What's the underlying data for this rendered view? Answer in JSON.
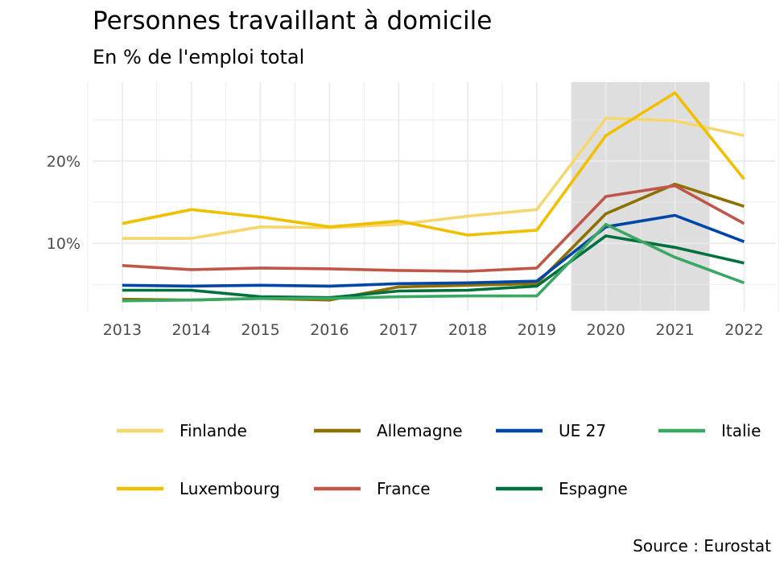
{
  "title": "Personnes travaillant à domicile",
  "subtitle": "En % de l'emploi total",
  "source": "Source : Eurostat",
  "chart_data": {
    "type": "line",
    "title": "Personnes travaillant à domicile",
    "subtitle": "En % de l'emploi total",
    "xlabel": "",
    "ylabel": "",
    "x": [
      2013,
      2014,
      2015,
      2016,
      2017,
      2018,
      2019,
      2020,
      2021,
      2022
    ],
    "x_tick_labels": [
      "2013",
      "2014",
      "2015",
      "2016",
      "2017",
      "2018",
      "2019",
      "2020",
      "2021",
      "2022"
    ],
    "y_ticks": [
      10,
      20
    ],
    "y_tick_labels": [
      "10%",
      "20%"
    ],
    "ylim": [
      1.8,
      29.6
    ],
    "grid": true,
    "highlight_x_range": [
      2019.5,
      2021.5
    ],
    "highlight_color": "#dedede",
    "legend_position": "bottom",
    "series": [
      {
        "name": "Finlande",
        "color": "#f5d76e",
        "values": [
          10.6,
          10.6,
          12.0,
          11.9,
          12.3,
          13.3,
          14.1,
          25.2,
          24.9,
          23.1
        ]
      },
      {
        "name": "Luxembourg",
        "color": "#f0c000",
        "values": [
          12.4,
          14.1,
          13.2,
          12.0,
          12.7,
          11.0,
          11.6,
          23.1,
          28.3,
          17.8
        ]
      },
      {
        "name": "Allemagne",
        "color": "#8c7000",
        "values": [
          3.2,
          3.1,
          3.3,
          3.1,
          4.7,
          4.9,
          5.1,
          13.6,
          17.2,
          14.5
        ]
      },
      {
        "name": "France",
        "color": "#c0564a",
        "values": [
          7.3,
          6.8,
          7.0,
          6.9,
          6.7,
          6.6,
          7.0,
          15.7,
          17.0,
          12.4
        ]
      },
      {
        "name": "UE 27",
        "color": "#0046a8",
        "values": [
          4.9,
          4.8,
          4.9,
          4.8,
          5.1,
          5.2,
          5.4,
          12.0,
          13.4,
          10.2
        ]
      },
      {
        "name": "Espagne",
        "color": "#00703c",
        "values": [
          4.3,
          4.3,
          3.5,
          3.4,
          4.2,
          4.3,
          4.8,
          10.9,
          9.5,
          7.6
        ]
      },
      {
        "name": "Italie",
        "color": "#3aa863",
        "values": [
          3.0,
          3.1,
          3.3,
          3.3,
          3.5,
          3.6,
          3.6,
          12.3,
          8.3,
          5.2
        ]
      }
    ]
  }
}
